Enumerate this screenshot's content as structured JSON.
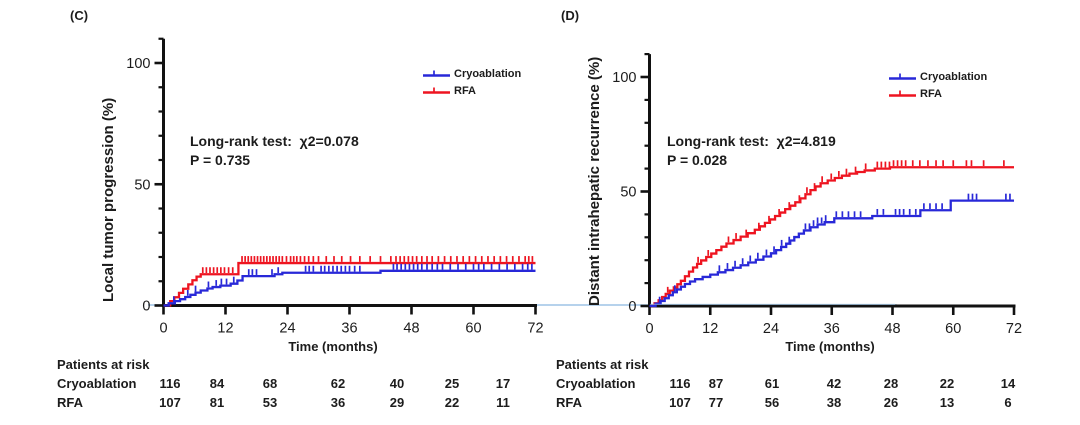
{
  "colors": {
    "cryoablation": "#2828d8",
    "rfa": "#ee1420",
    "axis": "#111111",
    "text": "#1c1c1c",
    "zero_baseline": "#9dc3e6"
  },
  "chart_data": [
    {
      "type": "line",
      "subtype": "cumulative-incidence-step-curve",
      "panel_label": "(C)",
      "ylabel": "Local tumor progression (%)",
      "xlabel": "Time (months)",
      "annotation_line1": "Long-rank test:  χ2=0.078",
      "annotation_line2": "P = 0.735",
      "xlim": [
        0,
        72
      ],
      "ylim": [
        0,
        110
      ],
      "x_ticks": [
        0,
        12,
        24,
        36,
        48,
        60,
        72
      ],
      "y_ticks": [
        0,
        50,
        100
      ],
      "legend": [
        {
          "label": "Cryoablation",
          "color": "#2828d8"
        },
        {
          "label": "RFA",
          "color": "#ee1420"
        }
      ],
      "series": [
        {
          "name": "Cryoablation",
          "color": "#2828d8",
          "steps": [
            [
              0,
              0
            ],
            [
              1,
              0.9
            ],
            [
              2.2,
              1.8
            ],
            [
              3.2,
              2.6
            ],
            [
              4.2,
              3.5
            ],
            [
              5.2,
              4.4
            ],
            [
              6.2,
              5.3
            ],
            [
              7.2,
              6.2
            ],
            [
              8.5,
              7.0
            ],
            [
              9.5,
              7.6
            ],
            [
              11,
              8.2
            ],
            [
              13,
              9.0
            ],
            [
              14.3,
              10.3
            ],
            [
              15.3,
              12.1
            ],
            [
              21.5,
              12.9
            ],
            [
              23,
              13.5
            ],
            [
              42,
              14.3
            ]
          ],
          "censor_months": [
            2,
            4.7,
            6.2,
            8.7,
            10.2,
            11.2,
            12.2,
            13.6,
            16.5,
            17.2,
            18,
            21,
            22.2,
            27.5,
            28.2,
            29,
            30.5,
            31.2,
            32,
            32.8,
            33.6,
            34.4,
            35.2,
            36,
            37,
            38,
            44.5,
            45.2,
            46,
            46.8,
            47.6,
            48.4,
            49.2,
            50,
            51,
            52,
            53,
            54,
            55.5,
            57,
            58.5,
            60,
            61,
            62,
            63.5,
            65,
            66.5,
            68,
            69.5,
            70.5,
            71.3
          ]
        },
        {
          "name": "RFA",
          "color": "#ee1420",
          "steps": [
            [
              0,
              0
            ],
            [
              1.3,
              1.8
            ],
            [
              2.1,
              3.4
            ],
            [
              3,
              5.2
            ],
            [
              3.8,
              6.9
            ],
            [
              4.8,
              8.7
            ],
            [
              5.6,
              10.4
            ],
            [
              6.4,
              11.9
            ],
            [
              7.2,
              12.9
            ],
            [
              14.5,
              17.5
            ]
          ],
          "censor_months": [
            7.6,
            8.3,
            9,
            9.7,
            10.4,
            11.1,
            11.8,
            12.6,
            13.4,
            15.2,
            15.8,
            16.4,
            17,
            17.6,
            18.2,
            18.8,
            19.4,
            20,
            20.6,
            21.2,
            21.8,
            22.4,
            23,
            23.8,
            24.6,
            25.2,
            25.8,
            26.5,
            27.3,
            28.1,
            29,
            30,
            31.5,
            33,
            34.5,
            36.2,
            38,
            40,
            42,
            44,
            45,
            45.8,
            46.6,
            47.4,
            48.2,
            49,
            50,
            51,
            52,
            53.2,
            54.4,
            55.6,
            56.8,
            58,
            59.2,
            60.4,
            61.6,
            62.8,
            64,
            65.2,
            66.4,
            67.6,
            68.8,
            70,
            70.7,
            71.4
          ]
        }
      ],
      "risk_table": {
        "title": "Patients at risk",
        "time_points": [
          0,
          12,
          24,
          36,
          48,
          60,
          72
        ],
        "rows": [
          {
            "label": "Cryoablation",
            "counts": [
              "116",
              "84",
              "68",
              "62",
              "40",
              "25",
              "17"
            ]
          },
          {
            "label": "RFA",
            "counts": [
              "107",
              "81",
              "53",
              "36",
              "29",
              "22",
              "11"
            ]
          }
        ]
      }
    },
    {
      "type": "line",
      "subtype": "cumulative-incidence-step-curve",
      "panel_label": "(D)",
      "ylabel": "Distant intrahepatic recurrence (%)",
      "xlabel": "Time (months)",
      "annotation_line1": "Long-rank test:  χ2=4.819",
      "annotation_line2": "P = 0.028",
      "xlim": [
        0,
        72
      ],
      "ylim": [
        0,
        110
      ],
      "x_ticks": [
        0,
        12,
        24,
        36,
        48,
        60,
        72
      ],
      "y_ticks": [
        0,
        50,
        100
      ],
      "legend": [
        {
          "label": "Cryoablation",
          "color": "#2828d8"
        },
        {
          "label": "RFA",
          "color": "#ee1420"
        }
      ],
      "series": [
        {
          "name": "Cryoablation",
          "color": "#2828d8",
          "steps": [
            [
              0,
              0
            ],
            [
              1.2,
              1.0
            ],
            [
              2.2,
              2.2
            ],
            [
              3,
              3.4
            ],
            [
              3.8,
              4.7
            ],
            [
              4.6,
              6.0
            ],
            [
              5.4,
              7.2
            ],
            [
              6.2,
              8.4
            ],
            [
              7,
              9.6
            ],
            [
              8,
              10.7
            ],
            [
              9,
              11.7
            ],
            [
              10.5,
              12.7
            ],
            [
              12,
              13.7
            ],
            [
              13.5,
              14.7
            ],
            [
              15,
              15.7
            ],
            [
              16.5,
              16.7
            ],
            [
              18,
              17.8
            ],
            [
              19.5,
              19.0
            ],
            [
              21,
              20.2
            ],
            [
              22.5,
              21.6
            ],
            [
              24,
              23.0
            ],
            [
              25,
              24.4
            ],
            [
              26,
              25.8
            ],
            [
              27,
              27.2
            ],
            [
              27.8,
              28.6
            ],
            [
              28.6,
              30.1
            ],
            [
              29.5,
              31.6
            ],
            [
              30.5,
              33.0
            ],
            [
              31.8,
              34.4
            ],
            [
              33.2,
              35.6
            ],
            [
              34.6,
              36.6
            ],
            [
              36.5,
              38.3
            ],
            [
              44,
              39.3
            ],
            [
              53.5,
              41.8
            ],
            [
              59.5,
              46.0
            ]
          ],
          "censor_months": [
            2,
            5,
            13.8,
            15.4,
            16.9,
            18.4,
            19.9,
            21.4,
            23.1,
            24.6,
            26.1,
            27.6,
            30.8,
            31.6,
            32.4,
            33.2,
            34,
            34.8,
            36.9,
            38.1,
            39.3,
            40.5,
            41.7,
            45,
            46.2,
            48.6,
            49.4,
            50.2,
            51.4,
            52.6,
            54.2,
            55.4,
            56.6,
            57.8,
            63,
            63.8,
            64.6,
            70.4,
            71.2
          ]
        },
        {
          "name": "RFA",
          "color": "#ee1420",
          "steps": [
            [
              0,
              0
            ],
            [
              1,
              1.2
            ],
            [
              1.8,
              2.5
            ],
            [
              2.5,
              3.9
            ],
            [
              3.2,
              5.3
            ],
            [
              4,
              6.7
            ],
            [
              4.8,
              8.1
            ],
            [
              5.5,
              9.5
            ],
            [
              6.2,
              11.0
            ],
            [
              7,
              13.0
            ],
            [
              7.8,
              15.0
            ],
            [
              8.6,
              16.8
            ],
            [
              9.4,
              18.4
            ],
            [
              10.2,
              19.9
            ],
            [
              11.2,
              21.4
            ],
            [
              12.2,
              22.9
            ],
            [
              13.2,
              24.4
            ],
            [
              14.2,
              25.9
            ],
            [
              15.2,
              27.3
            ],
            [
              16.6,
              28.8
            ],
            [
              18,
              30.3
            ],
            [
              19.4,
              31.8
            ],
            [
              20.8,
              33.3
            ],
            [
              21.8,
              34.8
            ],
            [
              22.8,
              36.3
            ],
            [
              23.8,
              37.8
            ],
            [
              24.8,
              39.3
            ],
            [
              25.8,
              40.8
            ],
            [
              26.8,
              42.3
            ],
            [
              27.8,
              43.8
            ],
            [
              28.8,
              45.3
            ],
            [
              29.8,
              47.0
            ],
            [
              30.8,
              48.8
            ],
            [
              31.8,
              50.6
            ],
            [
              32.8,
              52.2
            ],
            [
              33.8,
              53.6
            ],
            [
              35.2,
              54.8
            ],
            [
              36.6,
              55.9
            ],
            [
              38,
              56.9
            ],
            [
              39.5,
              57.8
            ],
            [
              41,
              58.5
            ],
            [
              42.5,
              59.2
            ],
            [
              44.5,
              60.0
            ],
            [
              47.5,
              60.6
            ]
          ],
          "censor_months": [
            3.6,
            9.6,
            11.6,
            15.6,
            17.1,
            19.1,
            21.6,
            23.6,
            25.6,
            27.6,
            29.6,
            31.1,
            32.6,
            34.1,
            35.9,
            37.4,
            38.9,
            40.7,
            42.7,
            45,
            45.8,
            46.6,
            47.4,
            48.2,
            49,
            49.8,
            50.6,
            52,
            53.4,
            55,
            56.6,
            58,
            60,
            62.6,
            63.6,
            66,
            70
          ]
        }
      ],
      "risk_table": {
        "title": "Patients at risk",
        "time_points": [
          0,
          12,
          24,
          36,
          48,
          60,
          72
        ],
        "rows": [
          {
            "label": "Cryoablation",
            "counts": [
              "116",
              "87",
              "61",
              "42",
              "28",
              "22",
              "14"
            ]
          },
          {
            "label": "RFA",
            "counts": [
              "107",
              "77",
              "56",
              "38",
              "26",
              "13",
              "6"
            ]
          }
        ]
      }
    }
  ]
}
